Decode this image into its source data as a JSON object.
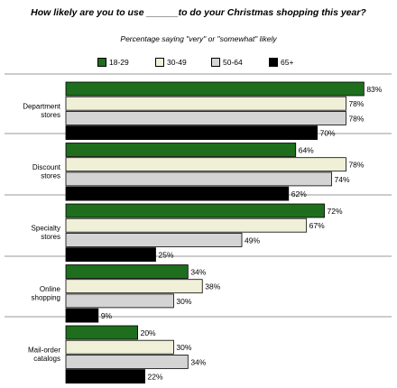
{
  "chart_data": {
    "type": "bar",
    "orientation": "horizontal",
    "title": "How likely are you to use ______to do your Christmas shopping this year?",
    "subtitle": "Percentage saying \"very\" or \"somewhat\" likely",
    "categories": [
      [
        "Department",
        "stores"
      ],
      [
        "Discount",
        "stores"
      ],
      [
        "Specialty",
        "stores"
      ],
      [
        "Online",
        "shopping"
      ],
      [
        "Mail-order",
        "catalogs"
      ]
    ],
    "series": [
      {
        "name": "18-29",
        "color": "#1e6e1e",
        "values": [
          83,
          64,
          72,
          34,
          20
        ]
      },
      {
        "name": "30-49",
        "color": "#f0f0d8",
        "values": [
          78,
          78,
          67,
          38,
          30
        ]
      },
      {
        "name": "50-64",
        "color": "#d4d4d4",
        "values": [
          78,
          74,
          49,
          30,
          34
        ]
      },
      {
        "name": "65+",
        "color": "#000000",
        "values": [
          70,
          62,
          25,
          9,
          22
        ]
      }
    ],
    "value_suffix": "%",
    "xlim": [
      0,
      100
    ],
    "legend_position": "top",
    "grid": false
  }
}
